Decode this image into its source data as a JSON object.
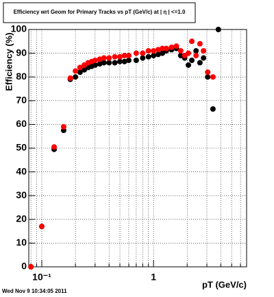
{
  "chart_data": {
    "type": "scatter",
    "title": "Efficiency wrt Geom for Primary Tracks vs pT (GeV/c) at | η | <=1.0",
    "x_label": "pT (GeV/c)",
    "y_label": "Efficiency (%)",
    "footer": "Wed Nov  9 10:34:05 2011",
    "x": [
      0.08,
      0.1,
      0.129,
      0.157,
      0.18,
      0.2,
      0.22,
      0.24,
      0.26,
      0.28,
      0.3,
      0.33,
      0.36,
      0.4,
      0.45,
      0.5,
      0.55,
      0.6,
      0.7,
      0.8,
      0.9,
      1.0,
      1.1,
      1.2,
      1.3,
      1.45,
      1.6,
      1.75,
      1.9,
      2.05,
      2.2,
      2.4,
      2.6,
      2.8,
      3.05,
      3.4,
      3.8
    ],
    "series": [
      {
        "name": "black",
        "color": "#000000",
        "values": [
          0,
          17,
          49.5,
          57.5,
          79,
          80,
          82,
          83,
          84,
          84.5,
          85,
          85.5,
          86,
          86,
          86,
          86.5,
          86.5,
          87,
          87,
          88,
          88.5,
          89,
          89.5,
          90,
          91,
          91.5,
          92,
          89,
          88,
          85,
          87,
          91,
          86,
          88,
          80,
          66.5,
          100
        ]
      },
      {
        "name": "red",
        "color": "#ff0000",
        "values": [
          0,
          17,
          50.5,
          59,
          79.5,
          82.5,
          84,
          85,
          86,
          86.5,
          87,
          87.5,
          88,
          88,
          88.5,
          88.5,
          89,
          89,
          90,
          90,
          91,
          91,
          91.5,
          92,
          92,
          92.5,
          93,
          91,
          89,
          90,
          95,
          89,
          94,
          91,
          82,
          80,
          null
        ]
      }
    ],
    "xlog": true,
    "xlim": [
      0.0765,
      6.8
    ],
    "xticks": [
      {
        "value": 0.1,
        "label": "10⁻¹"
      },
      1
    ],
    "xminorticks": [
      0.08,
      0.09,
      0.2,
      0.3,
      0.4,
      0.5,
      0.6,
      0.7,
      0.8,
      0.9,
      2,
      3,
      4,
      5,
      6
    ],
    "ylim": [
      0,
      100
    ],
    "yticks": [
      0,
      10,
      20,
      30,
      40,
      50,
      60,
      70,
      80,
      90,
      100
    ],
    "grid": true
  }
}
